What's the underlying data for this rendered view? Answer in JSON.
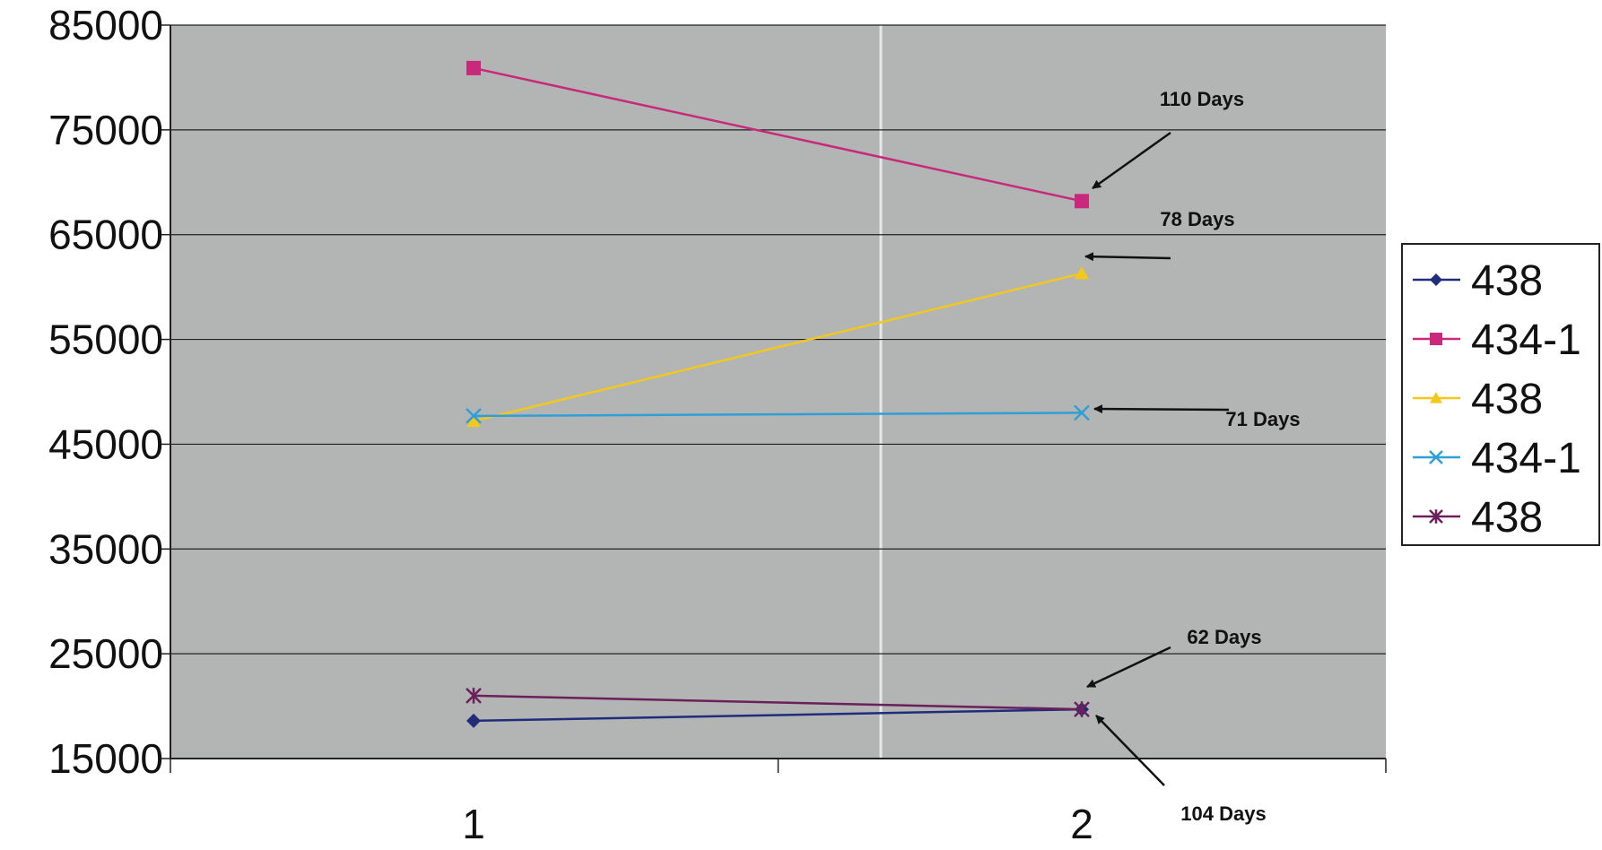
{
  "chart_data": {
    "type": "line",
    "title": "",
    "xlabel": "",
    "ylabel": "",
    "categories": [
      "1",
      "2"
    ],
    "ylim": [
      15000,
      85000
    ],
    "y_ticks": [
      "85000",
      "75000",
      "65000",
      "55000",
      "45000",
      "35000",
      "25000",
      "15000"
    ],
    "grid": "horizontal",
    "legend_position": "right",
    "series": [
      {
        "name": "438",
        "color": "#1f2d7a",
        "marker": "diamond",
        "values": [
          18600,
          19700
        ]
      },
      {
        "name": "434-1",
        "color": "#c8297a",
        "marker": "square",
        "values": [
          80900,
          68200
        ]
      },
      {
        "name": "438",
        "color": "#f2c81c",
        "marker": "triangle",
        "values": [
          47200,
          61300
        ]
      },
      {
        "name": "434-1",
        "color": "#2f9fd6",
        "marker": "x",
        "values": [
          47700,
          48000
        ]
      },
      {
        "name": "438",
        "color": "#6b1f5b",
        "marker": "asterisk",
        "values": [
          21000,
          19700
        ]
      }
    ],
    "annotations": [
      {
        "text": "110 Days",
        "series_index": 1
      },
      {
        "text": "78 Days",
        "series_index": 2
      },
      {
        "text": "71 Days",
        "series_index": 3
      },
      {
        "text": "62 Days",
        "series_index": 4
      },
      {
        "text": "104 Days",
        "series_index": 0
      }
    ]
  }
}
